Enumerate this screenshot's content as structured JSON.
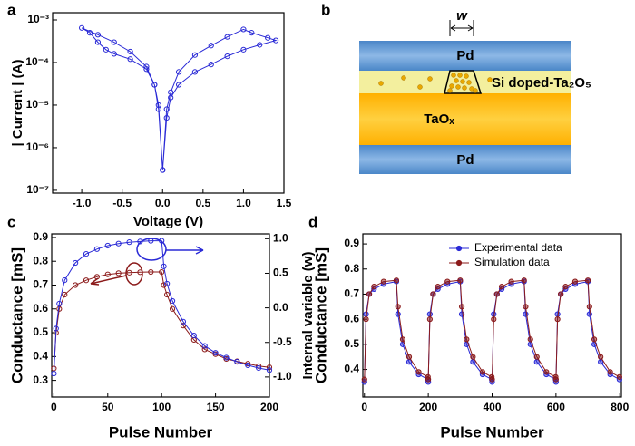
{
  "panel_labels": [
    "a",
    "b",
    "c",
    "d"
  ],
  "diagram": {
    "width_label": "w",
    "top_electrode": "Pd",
    "doped_layer": "Si doped-Ta₂O₅",
    "oxide_layer": "TaOₓ",
    "bottom_electrode": "Pd"
  },
  "chart_data": [
    {
      "type": "scatter",
      "xlabel": "Voltage (V)",
      "ylabel": "| Current | (A)",
      "log": true,
      "xlim": [
        -1.36,
        1.5
      ],
      "xticks": [
        {
          "value": -1,
          "label": "-1.0"
        },
        -0.5,
        {
          "value": 0,
          "label": "0.0"
        },
        0.5,
        {
          "value": 1,
          "label": "1.0"
        },
        1.5
      ],
      "ylim": [
        8.6e-08,
        0.00148
      ],
      "yticks": [
        {
          "value": 1e-07,
          "label": "10⁻⁷"
        },
        {
          "value": 1e-06,
          "label": "10⁻⁶"
        },
        {
          "value": 1e-05,
          "label": "10⁻⁵"
        },
        {
          "value": 0.0001,
          "label": "10⁻⁴"
        },
        {
          "value": 0.001,
          "label": "10⁻³"
        }
      ],
      "x": [
        0,
        0.05,
        0.1,
        0.2,
        0.4,
        0.6,
        0.8,
        1.0,
        1.2,
        1.4,
        1.3,
        1.1,
        1.0,
        0.8,
        0.6,
        0.4,
        0.2,
        0.1,
        0.05,
        0,
        -0.05,
        -0.1,
        -0.2,
        -0.4,
        -0.6,
        -0.8,
        -1.0,
        -0.9,
        -0.8,
        -0.7,
        -0.6,
        -0.4,
        -0.2,
        -0.1,
        -0.05,
        0
      ],
      "series": [
        {
          "color": "#2a2ad6",
          "values": [
            3e-07,
            5e-06,
            1.5e-05,
            3e-05,
            6e-05,
            9e-05,
            0.00014,
            0.0002,
            0.00026,
            0.00033,
            0.00038,
            0.0005,
            0.0006,
            0.0004,
            0.00025,
            0.00015,
            6e-05,
            2e-05,
            8e-06,
            3e-07,
            8e-06,
            3e-05,
            8e-05,
            0.00018,
            0.0003,
            0.00045,
            0.00065,
            0.0005,
            0.0003,
            0.0002,
            0.00016,
            0.00012,
            7e-05,
            3e-05,
            1e-05,
            3e-07
          ]
        }
      ]
    },
    {
      "type": "scatter",
      "xlabel": "Pulse Number",
      "ylabel": "Conductance [mS]",
      "y2label": "Internal variable (w)",
      "xlim": [
        -2,
        200
      ],
      "xticks": [
        0,
        50,
        100,
        150,
        200
      ],
      "ylim": [
        0.23,
        0.915
      ],
      "yticks": [
        0.3,
        0.4,
        0.5,
        0.6,
        0.7,
        0.8,
        0.9
      ],
      "y2lim": [
        -1.29,
        1.07
      ],
      "y2ticks": [
        {
          "value": -1,
          "label": "-1.0"
        },
        -0.5,
        {
          "value": 0,
          "label": "0.0"
        },
        0.5,
        {
          "value": 1,
          "label": "1.0"
        }
      ],
      "x": [
        0,
        2,
        5,
        10,
        20,
        30,
        40,
        50,
        60,
        70,
        80,
        90,
        100,
        102,
        105,
        110,
        120,
        130,
        140,
        150,
        160,
        170,
        180,
        190,
        200
      ],
      "series": [
        {
          "color": "#8b1a1a",
          "values": [
            0.35,
            0.5,
            0.6,
            0.66,
            0.7,
            0.72,
            0.735,
            0.745,
            0.75,
            0.752,
            0.754,
            0.755,
            0.755,
            0.7,
            0.66,
            0.6,
            0.53,
            0.47,
            0.43,
            0.41,
            0.39,
            0.38,
            0.37,
            0.36,
            0.355
          ]
        },
        {
          "color": "#2a2ad6",
          "axis": "y2",
          "values": [
            -0.95,
            -0.3,
            0.06,
            0.4,
            0.65,
            0.78,
            0.85,
            0.9,
            0.93,
            0.95,
            0.96,
            0.97,
            0.97,
            0.6,
            0.35,
            0.1,
            -0.2,
            -0.4,
            -0.55,
            -0.65,
            -0.72,
            -0.78,
            -0.83,
            -0.87,
            -0.9
          ]
        }
      ]
    },
    {
      "type": "scatter",
      "xlabel": "Pulse Number",
      "ylabel": "Conductance [mS]",
      "legend": "top-right",
      "xlim": [
        -5,
        805
      ],
      "xticks": [
        0,
        200,
        400,
        600,
        800
      ],
      "ylim": [
        0.29,
        0.94
      ],
      "yticks": [
        0.4,
        0.5,
        0.6,
        0.7,
        0.8,
        0.9
      ],
      "x": [
        0,
        5,
        15,
        30,
        60,
        100,
        105,
        120,
        140,
        170,
        199,
        200,
        205,
        215,
        230,
        260,
        300,
        305,
        320,
        340,
        370,
        399,
        400,
        405,
        415,
        430,
        460,
        500,
        505,
        520,
        540,
        570,
        599,
        600,
        605,
        615,
        630,
        660,
        700,
        705,
        720,
        740,
        770,
        799
      ],
      "series": [
        {
          "name": "Experimental data",
          "color": "#2a2ad6",
          "values": [
            0.35,
            0.62,
            0.7,
            0.72,
            0.74,
            0.75,
            0.62,
            0.5,
            0.43,
            0.38,
            0.36,
            0.35,
            0.62,
            0.7,
            0.72,
            0.74,
            0.75,
            0.62,
            0.5,
            0.43,
            0.38,
            0.36,
            0.35,
            0.62,
            0.7,
            0.72,
            0.74,
            0.75,
            0.62,
            0.5,
            0.43,
            0.38,
            0.36,
            0.35,
            0.62,
            0.7,
            0.72,
            0.74,
            0.75,
            0.62,
            0.5,
            0.43,
            0.38,
            0.36
          ]
        },
        {
          "name": "Simulation data",
          "color": "#8b1a1a",
          "values": [
            0.36,
            0.6,
            0.7,
            0.73,
            0.75,
            0.755,
            0.65,
            0.52,
            0.45,
            0.39,
            0.37,
            0.36,
            0.6,
            0.7,
            0.73,
            0.75,
            0.755,
            0.65,
            0.52,
            0.45,
            0.39,
            0.37,
            0.36,
            0.6,
            0.7,
            0.73,
            0.75,
            0.755,
            0.65,
            0.52,
            0.45,
            0.39,
            0.37,
            0.36,
            0.6,
            0.7,
            0.73,
            0.75,
            0.755,
            0.65,
            0.52,
            0.45,
            0.39,
            0.37
          ]
        }
      ]
    }
  ]
}
